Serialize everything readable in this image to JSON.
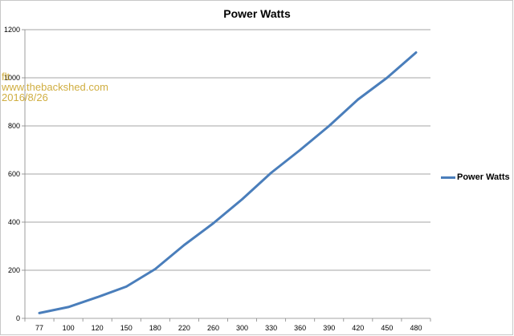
{
  "chart_data": {
    "type": "line",
    "title": "Power Watts",
    "categories": [
      "77",
      "100",
      "120",
      "150",
      "180",
      "220",
      "260",
      "300",
      "330",
      "360",
      "390",
      "420",
      "450",
      "480"
    ],
    "series": [
      {
        "name": "Power Watts",
        "color": "#4a7ebb",
        "values": [
          22,
          47,
          88,
          132,
          205,
          305,
          395,
          495,
          605,
          700,
          800,
          910,
          1000,
          1105
        ]
      }
    ],
    "ylim": [
      0,
      1200
    ],
    "yticks": [
      0,
      200,
      400,
      600,
      800,
      1000,
      1200
    ],
    "grid": true,
    "legend": "right"
  },
  "watermark": {
    "line1": "flt",
    "line2": "www.thebackshed.com",
    "line3": "2016/8/26"
  }
}
